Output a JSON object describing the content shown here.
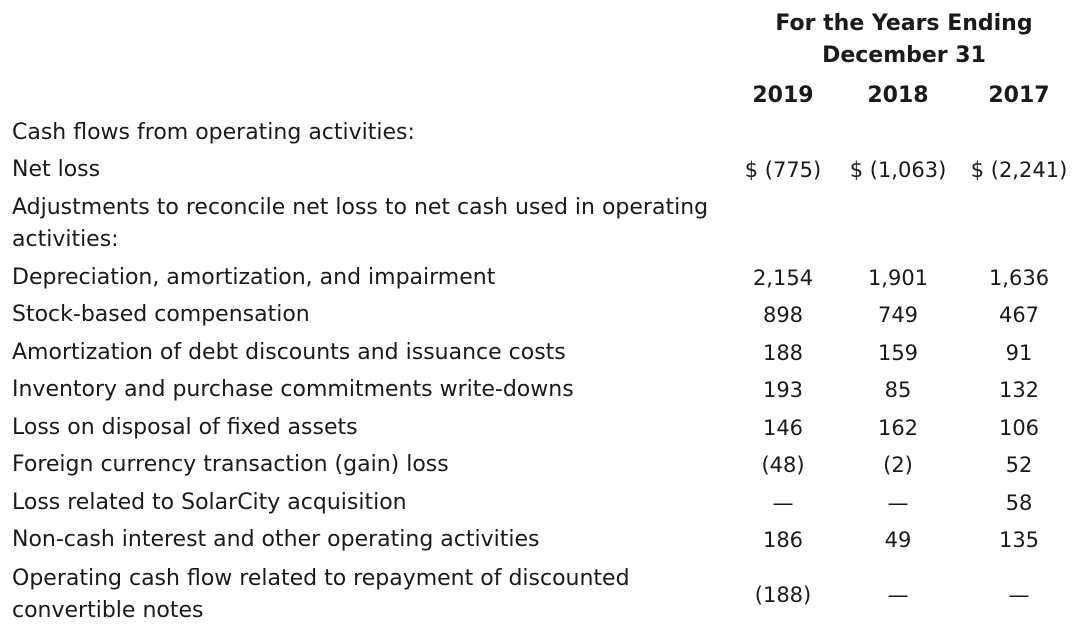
{
  "header": {
    "title_line1": "For the Years Ending",
    "title_line2": "December 31",
    "years": [
      "2019",
      "2018",
      "2017"
    ]
  },
  "rows": [
    {
      "label": "Cash flows from operating activities:",
      "values": [
        "",
        "",
        ""
      ]
    },
    {
      "label": "Net loss",
      "values": [
        "$ (775)",
        "$ (1,063)",
        "$ (2,241)"
      ]
    },
    {
      "label": "Adjustments to reconcile net loss to net cash used in operating",
      "label2": "activities:",
      "values": [
        "",
        "",
        ""
      ]
    },
    {
      "label": "Depreciation, amortization, and impairment",
      "values": [
        "2,154",
        "1,901",
        "1,636"
      ]
    },
    {
      "label": "Stock-based compensation",
      "values": [
        "898",
        "749",
        "467"
      ]
    },
    {
      "label": "Amortization of debt discounts and issuance costs",
      "values": [
        "188",
        "159",
        "91"
      ]
    },
    {
      "label": "Inventory and purchase commitments write-downs",
      "values": [
        "193",
        "85",
        "132"
      ]
    },
    {
      "label": "Loss on disposal of fixed assets",
      "values": [
        "146",
        "162",
        "106"
      ]
    },
    {
      "label": "Foreign currency transaction (gain) loss",
      "values": [
        "(48)",
        "(2)",
        "52"
      ]
    },
    {
      "label": "Loss related to SolarCity acquisition",
      "values": [
        "—",
        "—",
        "58"
      ]
    },
    {
      "label": "Non-cash interest and other operating activities",
      "values": [
        "186",
        "49",
        "135"
      ]
    },
    {
      "label": "Operating cash flow related to repayment of discounted",
      "label2": "convertible notes",
      "values": [
        "(188)",
        "—",
        "—"
      ]
    }
  ]
}
